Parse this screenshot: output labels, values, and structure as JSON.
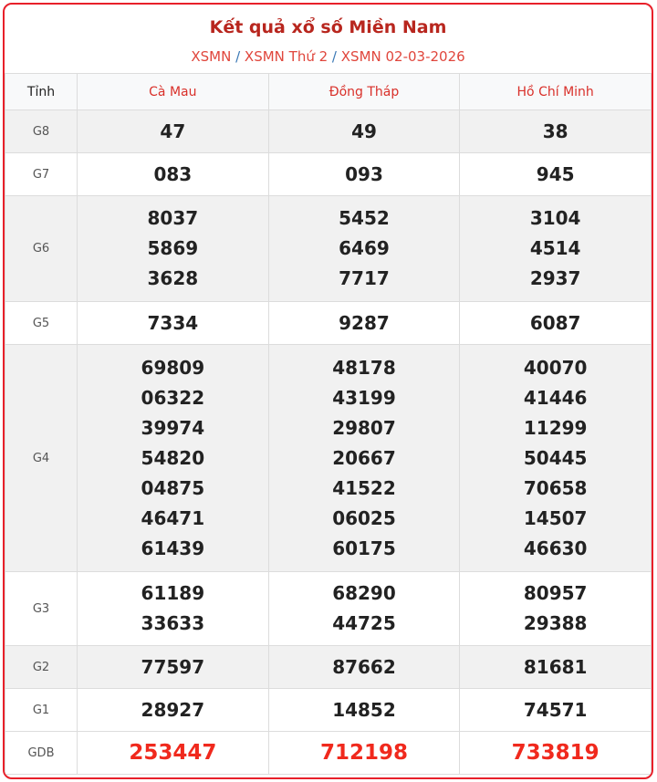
{
  "header": {
    "title": "Kết quả xổ số Miền Nam",
    "breadcrumb": [
      "XSMN",
      "XSMN Thứ 2",
      "XSMN 02-03-2026"
    ],
    "separator": "/"
  },
  "table": {
    "columns": [
      "Tỉnh",
      "Cà Mau",
      "Đồng Tháp",
      "Hồ Chí Minh"
    ],
    "rows": [
      {
        "label": "G8",
        "values": [
          [
            "47"
          ],
          [
            "49"
          ],
          [
            "38"
          ]
        ]
      },
      {
        "label": "G7",
        "values": [
          [
            "083"
          ],
          [
            "093"
          ],
          [
            "945"
          ]
        ]
      },
      {
        "label": "G6",
        "values": [
          [
            "8037",
            "5869",
            "3628"
          ],
          [
            "5452",
            "6469",
            "7717"
          ],
          [
            "3104",
            "4514",
            "2937"
          ]
        ]
      },
      {
        "label": "G5",
        "values": [
          [
            "7334"
          ],
          [
            "9287"
          ],
          [
            "6087"
          ]
        ]
      },
      {
        "label": "G4",
        "values": [
          [
            "69809",
            "06322",
            "39974",
            "54820",
            "04875",
            "46471",
            "61439"
          ],
          [
            "48178",
            "43199",
            "29807",
            "20667",
            "41522",
            "06025",
            "60175"
          ],
          [
            "40070",
            "41446",
            "11299",
            "50445",
            "70658",
            "14507",
            "46630"
          ]
        ]
      },
      {
        "label": "G3",
        "values": [
          [
            "61189",
            "33633"
          ],
          [
            "68290",
            "44725"
          ],
          [
            "80957",
            "29388"
          ]
        ]
      },
      {
        "label": "G2",
        "values": [
          [
            "77597"
          ],
          [
            "87662"
          ],
          [
            "81681"
          ]
        ]
      },
      {
        "label": "G1",
        "values": [
          [
            "28927"
          ],
          [
            "14852"
          ],
          [
            "74571"
          ]
        ]
      },
      {
        "label": "GDB",
        "values": [
          [
            "253447"
          ],
          [
            "712198"
          ],
          [
            "733819"
          ]
        ]
      }
    ]
  },
  "colors": {
    "border": "#e8202a",
    "title": "#b8261e",
    "special_prize": "#f0291d",
    "shade": "#f1f1f1"
  }
}
